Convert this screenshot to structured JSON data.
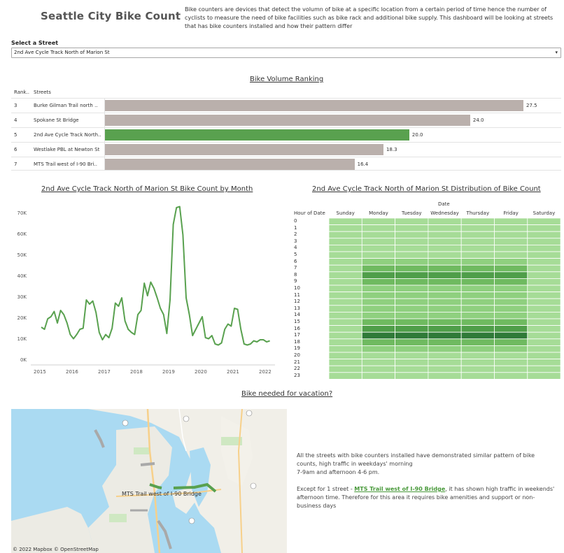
{
  "header": {
    "title": "Seattle City Bike Count",
    "description": "Bike counters are devices that detect the volumn of bike at a specific location from a certain period of time hence the number of cyclists to measure the need of bike facilities such as bike rack and additional bike supply. This dashboard will be looking at streets that has bike counters installed and how their pattern differ"
  },
  "filter": {
    "label": "Select a Street",
    "selected": "2nd Ave Cycle Track North of Marion St"
  },
  "ranking": {
    "title": "Bike Volume Ranking",
    "col_rank": "Rank..",
    "col_street": "Streets",
    "rows": [
      {
        "rank": "3",
        "street": "Burke Gilman Trail north ..",
        "value": "27.5",
        "num": 27.5,
        "highlight": false
      },
      {
        "rank": "4",
        "street": "Spokane St Bridge",
        "value": "24.0",
        "num": 24.0,
        "highlight": false
      },
      {
        "rank": "5",
        "street": "2nd Ave Cycle Track North..",
        "value": "20.0",
        "num": 20.0,
        "highlight": true
      },
      {
        "rank": "6",
        "street": "Westlake PBL at Newton St",
        "value": "18.3",
        "num": 18.3,
        "highlight": false
      },
      {
        "rank": "7",
        "street": "MTS Trail west of I-90 Bri..",
        "value": "16.4",
        "num": 16.4,
        "highlight": false
      }
    ],
    "colors": {
      "default": "#bab0ac",
      "highlight": "#59a14f"
    }
  },
  "line_chart": {
    "title": "2nd Ave Cycle Track North of Marion St Bike Count by Month",
    "y_ticks": [
      "0K",
      "10K",
      "20K",
      "30K",
      "40K",
      "50K",
      "60K",
      "70K"
    ],
    "x_ticks": [
      "2015",
      "2016",
      "2017",
      "2018",
      "2019",
      "2020",
      "2021",
      "2022"
    ],
    "color": "#59a14f"
  },
  "heatmap": {
    "title": "2nd Ave Cycle Track North of Marion St Distribution of Bike Count",
    "x_group_label": "Date",
    "row_header": "Hour of Date",
    "days": [
      "Sunday",
      "Monday",
      "Tuesday",
      "Wednesday",
      "Thursday",
      "Friday",
      "Saturday"
    ],
    "hours": [
      "0",
      "1",
      "2",
      "3",
      "4",
      "5",
      "6",
      "7",
      "8",
      "9",
      "10",
      "11",
      "12",
      "13",
      "14",
      "15",
      "16",
      "17",
      "18",
      "19",
      "20",
      "21",
      "22",
      "23"
    ]
  },
  "vacation": {
    "title": "Bike needed for vacation?",
    "map_label": "MTS Trail west of I-90 Bridge",
    "map_credit": "© 2022 Mapbox  © OpenStreetMap",
    "note_p1": "All the streets with bike counters installed have demonstrated similar pattern of bike counts, high traffic in weekdays' morning",
    "note_p1b": "7-9am and afternoon 4-6 pm.",
    "note_p2_pre": "Except for 1 street - ",
    "note_p2_link": "MTS Trail west of I-90 Bridge",
    "note_p2_post": ", it has shown high traffic in weekends' afternoon time. Therefore for this area it requires bike amenities and support or non-business days"
  },
  "chart_data": [
    {
      "type": "bar",
      "title": "Bike Volume Ranking",
      "categories": [
        "Burke Gilman Trail north ..",
        "Spokane St Bridge",
        "2nd Ave Cycle Track North..",
        "Westlake PBL at Newton St",
        "MTS Trail west of I-90 Bri.."
      ],
      "values": [
        27.5,
        24.0,
        20.0,
        18.3,
        16.4
      ]
    },
    {
      "type": "line",
      "title": "2nd Ave Cycle Track North of Marion St Bike Count by Month",
      "xlim": [
        2015,
        2022.2
      ],
      "ylim": [
        0,
        75000
      ],
      "x": [
        2015.0,
        2015.1,
        2015.2,
        2015.3,
        2015.4,
        2015.5,
        2015.6,
        2015.7,
        2015.8,
        2015.9,
        2016.0,
        2016.1,
        2016.2,
        2016.3,
        2016.4,
        2016.5,
        2016.6,
        2016.7,
        2016.8,
        2016.9,
        2017.0,
        2017.1,
        2017.2,
        2017.3,
        2017.4,
        2017.5,
        2017.6,
        2017.7,
        2017.8,
        2017.9,
        2018.0,
        2018.1,
        2018.2,
        2018.3,
        2018.4,
        2018.5,
        2018.6,
        2018.7,
        2018.8,
        2018.9,
        2019.0,
        2019.1,
        2019.2,
        2019.3,
        2019.4,
        2019.5,
        2019.6,
        2019.7,
        2019.8,
        2019.9,
        2020.0,
        2020.1,
        2020.2,
        2020.3,
        2020.4,
        2020.5,
        2020.6,
        2020.7,
        2020.8,
        2020.9,
        2021.0,
        2021.1,
        2021.2,
        2021.3,
        2021.4,
        2021.5,
        2021.6,
        2021.7,
        2021.8,
        2021.9,
        2022.0,
        2022.1
      ],
      "y": [
        16000,
        15000,
        20000,
        21000,
        23500,
        18000,
        24000,
        22000,
        18000,
        12500,
        10500,
        12500,
        15000,
        15500,
        29000,
        27000,
        28500,
        23000,
        13500,
        10000,
        12500,
        11000,
        15500,
        27500,
        26000,
        30000,
        19000,
        15000,
        13500,
        12500,
        22000,
        24000,
        37000,
        31000,
        37500,
        34500,
        30000,
        25000,
        22000,
        13000,
        29000,
        65000,
        73000,
        73500,
        60000,
        30000,
        22000,
        12000,
        15000,
        18000,
        21000,
        11000,
        10500,
        12000,
        8000,
        7500,
        8500,
        15000,
        17500,
        16500,
        25000,
        24500,
        15000,
        8000,
        7500,
        8000,
        9500,
        9000,
        10000,
        10000,
        9000,
        9500
      ]
    },
    {
      "type": "heatmap",
      "title": "2nd Ave Cycle Track North of Marion St Distribution of Bike Count",
      "columns": [
        "Sunday",
        "Monday",
        "Tuesday",
        "Wednesday",
        "Thursday",
        "Friday",
        "Saturday"
      ],
      "rows": [
        "0",
        "1",
        "2",
        "3",
        "4",
        "5",
        "6",
        "7",
        "8",
        "9",
        "10",
        "11",
        "12",
        "13",
        "14",
        "15",
        "16",
        "17",
        "18",
        "19",
        "20",
        "21",
        "22",
        "23"
      ],
      "levels": [
        [
          1,
          1,
          1,
          1,
          1,
          1,
          1
        ],
        [
          1,
          1,
          1,
          1,
          1,
          1,
          1
        ],
        [
          1,
          1,
          1,
          1,
          1,
          1,
          1
        ],
        [
          1,
          1,
          1,
          1,
          1,
          1,
          1
        ],
        [
          1,
          1,
          1,
          1,
          1,
          1,
          1
        ],
        [
          1,
          1,
          1,
          1,
          1,
          1,
          1
        ],
        [
          1,
          2,
          2,
          2,
          2,
          2,
          1
        ],
        [
          1,
          3,
          3,
          3,
          3,
          3,
          1
        ],
        [
          1,
          4,
          4,
          4,
          4,
          4,
          1
        ],
        [
          1,
          3,
          3,
          3,
          3,
          3,
          1
        ],
        [
          1,
          2,
          2,
          2,
          2,
          2,
          1
        ],
        [
          1,
          2,
          2,
          2,
          2,
          2,
          1
        ],
        [
          1,
          2,
          2,
          2,
          2,
          2,
          1
        ],
        [
          1,
          2,
          2,
          2,
          2,
          2,
          1
        ],
        [
          1,
          2,
          2,
          2,
          2,
          2,
          1
        ],
        [
          1,
          3,
          3,
          3,
          3,
          3,
          1
        ],
        [
          1,
          4,
          4,
          4,
          4,
          4,
          1
        ],
        [
          1,
          5,
          5,
          5,
          5,
          5,
          1
        ],
        [
          1,
          3,
          3,
          3,
          3,
          3,
          1
        ],
        [
          1,
          2,
          2,
          2,
          2,
          2,
          1
        ],
        [
          1,
          1,
          1,
          1,
          1,
          1,
          1
        ],
        [
          1,
          1,
          1,
          1,
          1,
          1,
          1
        ],
        [
          1,
          1,
          1,
          1,
          1,
          1,
          1
        ],
        [
          1,
          1,
          1,
          1,
          1,
          1,
          1
        ]
      ]
    }
  ]
}
